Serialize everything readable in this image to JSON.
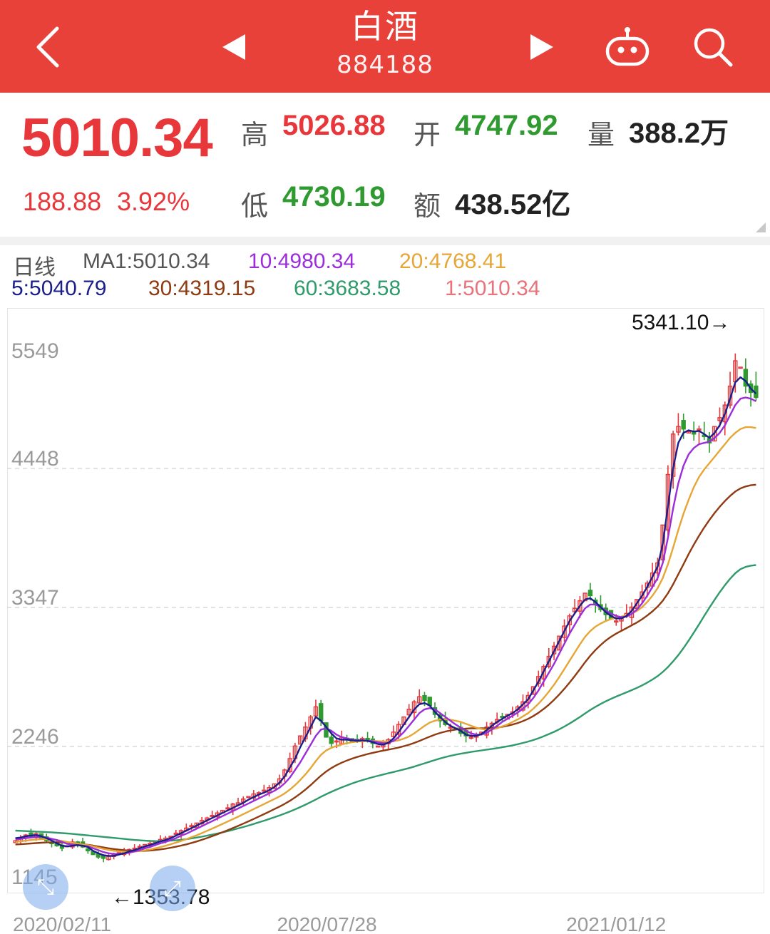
{
  "header": {
    "title": "白酒",
    "code": "884188",
    "icons": [
      "chevron-left-icon",
      "triangle-left-icon",
      "triangle-right-icon",
      "robot-icon",
      "search-icon"
    ]
  },
  "quote": {
    "price": "5010.34",
    "change": "188.88",
    "change_pct": "3.92%",
    "high_label": "高",
    "high": "5026.88",
    "open_label": "开",
    "open": "4747.92",
    "volume_label": "量",
    "volume": "388.2万",
    "low_label": "低",
    "low": "4730.19",
    "amount_label": "额",
    "amount": "438.52亿"
  },
  "ma_legend": {
    "period": "日线",
    "ma1": "MA1:5010.34",
    "ma10": "10:4980.34",
    "ma20": "20:4768.41",
    "ma5": "5:5040.79",
    "ma30": "30:4319.15",
    "ma60": "60:3683.58",
    "ma1b": "1:5010.34"
  },
  "colors": {
    "header_bg": "#e8413a",
    "up": "#e8373a",
    "down": "#2f9a2f",
    "ma5": "#1b1f8a",
    "ma10": "#9b2ddb",
    "ma20": "#e6a636",
    "ma30": "#8f3b12",
    "ma60": "#2f9a6a",
    "ma1": "#e8737a"
  },
  "chart_data": {
    "type": "line",
    "title": "",
    "y_ticks": [
      "5549",
      "4448",
      "3347",
      "2246",
      "1145"
    ],
    "ylim": [
      1145,
      5549
    ],
    "x_ticks": [
      "2020/02/11",
      "2020/07/28",
      "2021/01/12"
    ],
    "annotations": {
      "max_label": "5341.10→",
      "min_label": "←1353.78"
    },
    "series_notes": "Daily candles with MA5, MA10, MA20, MA30, MA60 moving averages",
    "ma_end_values": {
      "MA5": 5040.79,
      "MA10": 4980.34,
      "MA20": 4768.41,
      "MA30": 4319.15,
      "MA60": 3683.58
    },
    "close_series": [
      1500,
      1520,
      1545,
      1535,
      1555,
      1520,
      1500,
      1480,
      1460,
      1440,
      1460,
      1490,
      1480,
      1450,
      1420,
      1390,
      1370,
      1360,
      1375,
      1390,
      1405,
      1420,
      1430,
      1440,
      1455,
      1470,
      1480,
      1495,
      1510,
      1520,
      1535,
      1560,
      1580,
      1600,
      1620,
      1640,
      1660,
      1680,
      1700,
      1720,
      1740,
      1760,
      1790,
      1800,
      1830,
      1850,
      1870,
      1880,
      1900,
      1920,
      1950,
      1990,
      2060,
      2150,
      2250,
      2330,
      2400,
      2480,
      2560,
      2450,
      2320,
      2270,
      2290,
      2320,
      2300,
      2280,
      2300,
      2310,
      2290,
      2270,
      2250,
      2260,
      2300,
      2360,
      2420,
      2480,
      2540,
      2600,
      2640,
      2610,
      2570,
      2500,
      2450,
      2420,
      2400,
      2390,
      2350,
      2330,
      2320,
      2330,
      2360,
      2400,
      2430,
      2460,
      2480,
      2500,
      2520,
      2560,
      2600,
      2650,
      2720,
      2800,
      2880,
      2960,
      3040,
      3120,
      3200,
      3280,
      3340,
      3400,
      3460,
      3440,
      3380,
      3330,
      3290,
      3260,
      3240,
      3260,
      3300,
      3350,
      3410,
      3470,
      3540,
      3620,
      3700,
      4000,
      4400,
      4720,
      4780,
      4760,
      4740,
      4720,
      4760,
      4700,
      4650,
      4780,
      4850,
      4950,
      5100,
      5300,
      5250,
      5100,
      5050,
      5010
    ],
    "ma5": [
      1520,
      1525,
      1535,
      1540,
      1545,
      1535,
      1520,
      1500,
      1480,
      1460,
      1455,
      1460,
      1465,
      1460,
      1450,
      1420,
      1400,
      1385,
      1380,
      1380,
      1390,
      1400,
      1415,
      1425,
      1440,
      1455,
      1465,
      1480,
      1495,
      1505,
      1520,
      1540,
      1560,
      1580,
      1600,
      1620,
      1640,
      1660,
      1680,
      1700,
      1720,
      1740,
      1760,
      1780,
      1800,
      1825,
      1845,
      1865,
      1880,
      1900,
      1925,
      1960,
      2010,
      2080,
      2150,
      2240,
      2320,
      2400,
      2480,
      2450,
      2400,
      2350,
      2310,
      2300,
      2300,
      2295,
      2290,
      2295,
      2290,
      2280,
      2265,
      2260,
      2275,
      2310,
      2360,
      2420,
      2480,
      2540,
      2580,
      2590,
      2570,
      2520,
      2480,
      2440,
      2410,
      2390,
      2370,
      2340,
      2330,
      2330,
      2345,
      2375,
      2410,
      2440,
      2465,
      2490,
      2510,
      2540,
      2580,
      2620,
      2690,
      2760,
      2840,
      2920,
      3000,
      3080,
      3160,
      3240,
      3300,
      3360,
      3410,
      3420,
      3390,
      3350,
      3310,
      3280,
      3260,
      3260,
      3280,
      3320,
      3380,
      3440,
      3510,
      3590,
      3670,
      3850,
      4150,
      4450,
      4650,
      4730,
      4750,
      4740,
      4745,
      4720,
      4690,
      4730,
      4790,
      4880,
      5000,
      5130,
      5170,
      5140,
      5080,
      5040
    ],
    "ma10": [
      1510,
      1515,
      1520,
      1525,
      1530,
      1530,
      1525,
      1515,
      1505,
      1490,
      1475,
      1470,
      1465,
      1460,
      1455,
      1440,
      1425,
      1410,
      1400,
      1395,
      1395,
      1400,
      1405,
      1415,
      1425,
      1440,
      1450,
      1465,
      1480,
      1490,
      1505,
      1520,
      1540,
      1555,
      1575,
      1595,
      1615,
      1635,
      1655,
      1675,
      1695,
      1715,
      1735,
      1755,
      1775,
      1795,
      1815,
      1835,
      1855,
      1875,
      1895,
      1920,
      1955,
      2000,
      2060,
      2120,
      2190,
      2260,
      2330,
      2380,
      2390,
      2370,
      2340,
      2320,
      2310,
      2300,
      2295,
      2295,
      2292,
      2288,
      2280,
      2272,
      2275,
      2290,
      2320,
      2360,
      2410,
      2460,
      2510,
      2540,
      2550,
      2540,
      2510,
      2480,
      2450,
      2420,
      2395,
      2370,
      2350,
      2340,
      2340,
      2355,
      2380,
      2410,
      2440,
      2465,
      2490,
      2515,
      2545,
      2580,
      2630,
      2690,
      2760,
      2830,
      2900,
      2980,
      3060,
      3140,
      3210,
      3280,
      3340,
      3370,
      3370,
      3350,
      3320,
      3300,
      3280,
      3270,
      3275,
      3295,
      3330,
      3380,
      3440,
      3510,
      3580,
      3700,
      3900,
      4130,
      4330,
      4470,
      4560,
      4610,
      4640,
      4650,
      4660,
      4690,
      4730,
      4790,
      4870,
      4950,
      5000,
      5010,
      5000,
      4980
    ],
    "ma20": [
      1490,
      1495,
      1500,
      1505,
      1510,
      1512,
      1512,
      1510,
      1505,
      1498,
      1490,
      1483,
      1477,
      1470,
      1465,
      1455,
      1445,
      1435,
      1427,
      1420,
      1416,
      1413,
      1412,
      1414,
      1418,
      1424,
      1430,
      1440,
      1450,
      1460,
      1472,
      1485,
      1498,
      1512,
      1527,
      1543,
      1560,
      1578,
      1596,
      1614,
      1633,
      1652,
      1671,
      1690,
      1710,
      1730,
      1750,
      1770,
      1790,
      1810,
      1830,
      1850,
      1875,
      1905,
      1940,
      1980,
      2025,
      2075,
      2130,
      2180,
      2215,
      2235,
      2250,
      2262,
      2272,
      2280,
      2285,
      2288,
      2290,
      2290,
      2288,
      2286,
      2285,
      2288,
      2295,
      2308,
      2325,
      2350,
      2380,
      2410,
      2435,
      2450,
      2460,
      2462,
      2458,
      2450,
      2440,
      2425,
      2410,
      2395,
      2385,
      2380,
      2382,
      2390,
      2405,
      2420,
      2440,
      2460,
      2485,
      2510,
      2545,
      2585,
      2630,
      2680,
      2735,
      2795,
      2860,
      2925,
      2990,
      3055,
      3115,
      3160,
      3195,
      3220,
      3240,
      3255,
      3265,
      3275,
      3285,
      3300,
      3320,
      3350,
      3390,
      3440,
      3500,
      3580,
      3690,
      3820,
      3960,
      4090,
      4200,
      4300,
      4380,
      4440,
      4490,
      4540,
      4590,
      4640,
      4690,
      4730,
      4760,
      4775,
      4775,
      4768
    ],
    "ma30": [
      1470,
      1472,
      1475,
      1478,
      1481,
      1484,
      1486,
      1487,
      1487,
      1486,
      1484,
      1481,
      1477,
      1472,
      1467,
      1461,
      1454,
      1447,
      1440,
      1434,
      1429,
      1425,
      1422,
      1420,
      1419,
      1420,
      1422,
      1426,
      1431,
      1437,
      1444,
      1452,
      1461,
      1471,
      1482,
      1494,
      1507,
      1521,
      1536,
      1551,
      1567,
      1583,
      1600,
      1617,
      1635,
      1653,
      1672,
      1691,
      1710,
      1730,
      1750,
      1770,
      1792,
      1816,
      1843,
      1872,
      1905,
      1940,
      1978,
      2015,
      2048,
      2075,
      2098,
      2118,
      2135,
      2150,
      2163,
      2175,
      2186,
      2196,
      2205,
      2213,
      2221,
      2229,
      2238,
      2248,
      2260,
      2274,
      2290,
      2307,
      2324,
      2340,
      2353,
      2364,
      2373,
      2380,
      2385,
      2388,
      2390,
      2390,
      2390,
      2390,
      2392,
      2396,
      2402,
      2410,
      2420,
      2432,
      2447,
      2465,
      2487,
      2513,
      2543,
      2577,
      2615,
      2657,
      2703,
      2752,
      2804,
      2858,
      2914,
      2965,
      3010,
      3050,
      3085,
      3115,
      3140,
      3162,
      3183,
      3205,
      3228,
      3254,
      3283,
      3316,
      3354,
      3400,
      3460,
      3530,
      3610,
      3690,
      3770,
      3845,
      3915,
      3980,
      4040,
      4095,
      4145,
      4190,
      4230,
      4265,
      4290,
      4305,
      4315,
      4319
    ],
    "ma60": [
      1580,
      1578,
      1576,
      1574,
      1572,
      1570,
      1568,
      1566,
      1563,
      1560,
      1557,
      1554,
      1550,
      1546,
      1542,
      1538,
      1534,
      1530,
      1526,
      1522,
      1518,
      1514,
      1510,
      1506,
      1503,
      1500,
      1498,
      1497,
      1497,
      1498,
      1500,
      1503,
      1507,
      1512,
      1518,
      1525,
      1532,
      1540,
      1548,
      1557,
      1566,
      1576,
      1586,
      1597,
      1608,
      1620,
      1632,
      1645,
      1658,
      1672,
      1686,
      1700,
      1715,
      1731,
      1748,
      1766,
      1785,
      1805,
      1826,
      1848,
      1868,
      1887,
      1905,
      1922,
      1938,
      1953,
      1967,
      1980,
      1992,
      2003,
      2014,
      2024,
      2034,
      2044,
      2054,
      2064,
      2075,
      2087,
      2100,
      2113,
      2126,
      2139,
      2151,
      2162,
      2172,
      2181,
      2189,
      2196,
      2203,
      2209,
      2215,
      2221,
      2227,
      2233,
      2240,
      2247,
      2255,
      2264,
      2274,
      2285,
      2297,
      2311,
      2327,
      2344,
      2362,
      2382,
      2404,
      2428,
      2453,
      2480,
      2508,
      2535,
      2560,
      2583,
      2604,
      2623,
      2641,
      2658,
      2675,
      2692,
      2710,
      2730,
      2752,
      2776,
      2803,
      2836,
      2875,
      2920,
      2970,
      3025,
      3085,
      3148,
      3213,
      3280,
      3345,
      3408,
      3468,
      3524,
      3574,
      3618,
      3650,
      3668,
      3678,
      3683
    ]
  }
}
